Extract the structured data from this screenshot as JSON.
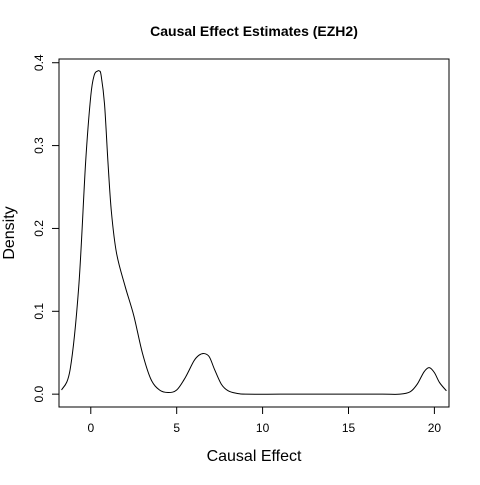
{
  "chart_data": {
    "type": "line",
    "title": "Causal Effect Estimates (EZH2)",
    "xlabel": "Causal Effect",
    "ylabel": "Density",
    "xlim": [
      -1.85,
      20.85
    ],
    "ylim": [
      -0.0155,
      0.4045
    ],
    "x_ticks": [
      0,
      5,
      10,
      15,
      20
    ],
    "y_ticks": [
      0.0,
      0.1,
      0.2,
      0.3,
      0.4
    ],
    "x_tick_labels": [
      "0",
      "5",
      "10",
      "15",
      "20"
    ],
    "y_tick_labels": [
      "0.0",
      "0.1",
      "0.2",
      "0.3",
      "0.4"
    ],
    "grid": false,
    "legend": "none",
    "line_color": "#000000",
    "series": [
      {
        "x": [
          -1.7,
          -1.2,
          -0.7,
          -0.3,
          0.0,
          0.2,
          0.4,
          0.5,
          0.6,
          0.8,
          1.0,
          1.2,
          1.5,
          2.0,
          2.5,
          3.0,
          3.5,
          4.0,
          4.5,
          5.0,
          5.5,
          6.0,
          6.3,
          6.6,
          6.9,
          7.2,
          7.6,
          8.0,
          8.5,
          9.0,
          11.0,
          13.0,
          15.0,
          17.0,
          18.0,
          18.6,
          19.0,
          19.4,
          19.7,
          20.0,
          20.3,
          20.7
        ],
        "y": [
          0.005,
          0.03,
          0.13,
          0.28,
          0.36,
          0.385,
          0.39,
          0.39,
          0.385,
          0.35,
          0.28,
          0.22,
          0.17,
          0.13,
          0.095,
          0.05,
          0.018,
          0.005,
          0.002,
          0.005,
          0.02,
          0.04,
          0.047,
          0.049,
          0.045,
          0.03,
          0.012,
          0.004,
          0.001,
          0.0,
          0.0,
          0.0,
          0.0,
          0.0,
          0.0,
          0.003,
          0.012,
          0.027,
          0.032,
          0.026,
          0.014,
          0.004
        ]
      }
    ]
  }
}
